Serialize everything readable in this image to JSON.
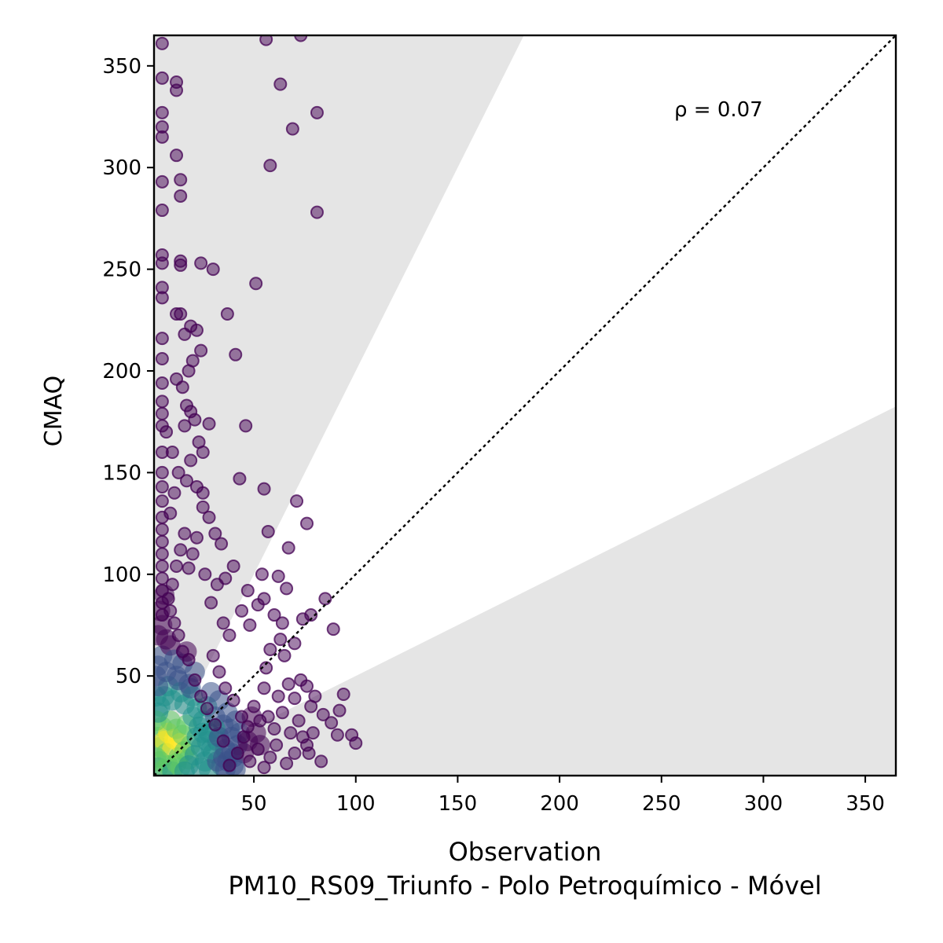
{
  "chart_data": {
    "type": "scatter",
    "title": "",
    "xlabel": "Observation",
    "ylabel": "CMAQ",
    "subtitle": "PM10_RS09_Triunfo - Polo Petroquímico - Móvel",
    "annotation": "ρ = 0.07",
    "xlim": [
      1,
      365
    ],
    "ylim": [
      1,
      365
    ],
    "xticks": [
      50,
      100,
      150,
      200,
      250,
      300,
      350
    ],
    "yticks": [
      50,
      100,
      150,
      200,
      250,
      300,
      350
    ],
    "grid": false,
    "reference_line": {
      "style": "dotted",
      "slope": 1,
      "color": "#000000"
    },
    "shaded_regions": [
      {
        "description": "model > 2x observation",
        "slope_lower": 2,
        "color": "#e5e5e5"
      },
      {
        "description": "model < 0.5x observation",
        "slope_upper": 0.5,
        "color": "#e5e5e5"
      }
    ],
    "colormap": [
      "#440154",
      "#3b528b",
      "#21918c",
      "#5ec962",
      "#fde725"
    ],
    "outlier_points": [
      [
        5,
        361
      ],
      [
        5,
        344
      ],
      [
        5,
        327
      ],
      [
        5,
        320
      ],
      [
        5,
        315
      ],
      [
        5,
        293
      ],
      [
        5,
        279
      ],
      [
        5,
        257
      ],
      [
        5,
        253
      ],
      [
        5,
        241
      ],
      [
        5,
        236
      ],
      [
        5,
        216
      ],
      [
        5,
        206
      ],
      [
        5,
        194
      ],
      [
        5,
        185
      ],
      [
        5,
        179
      ],
      [
        5,
        173
      ],
      [
        5,
        160
      ],
      [
        5,
        150
      ],
      [
        5,
        143
      ],
      [
        5,
        136
      ],
      [
        5,
        128
      ],
      [
        5,
        122
      ],
      [
        5,
        116
      ],
      [
        5,
        110
      ],
      [
        5,
        104
      ],
      [
        5,
        98
      ],
      [
        5,
        92
      ],
      [
        5,
        86
      ],
      [
        5,
        80
      ],
      [
        12,
        342
      ],
      [
        12,
        338
      ],
      [
        12,
        306
      ],
      [
        14,
        294
      ],
      [
        14,
        286
      ],
      [
        14,
        254
      ],
      [
        14,
        252
      ],
      [
        12,
        228
      ],
      [
        14,
        228
      ],
      [
        16,
        218
      ],
      [
        19,
        222
      ],
      [
        22,
        220
      ],
      [
        24,
        210
      ],
      [
        20,
        205
      ],
      [
        18,
        200
      ],
      [
        12,
        196
      ],
      [
        15,
        192
      ],
      [
        17,
        183
      ],
      [
        19,
        180
      ],
      [
        21,
        176
      ],
      [
        16,
        173
      ],
      [
        23,
        165
      ],
      [
        25,
        160
      ],
      [
        19,
        156
      ],
      [
        17,
        146
      ],
      [
        22,
        143
      ],
      [
        25,
        140
      ],
      [
        28,
        174
      ],
      [
        30,
        250
      ],
      [
        24,
        253
      ],
      [
        37,
        228
      ],
      [
        41,
        208
      ],
      [
        46,
        173
      ],
      [
        43,
        147
      ],
      [
        51,
        243
      ],
      [
        58,
        301
      ],
      [
        63,
        341
      ],
      [
        56,
        363
      ],
      [
        73,
        365
      ],
      [
        69,
        319
      ],
      [
        81,
        327
      ],
      [
        81,
        278
      ],
      [
        55,
        142
      ],
      [
        57,
        121
      ],
      [
        71,
        136
      ],
      [
        76,
        125
      ],
      [
        67,
        113
      ],
      [
        62,
        99
      ],
      [
        66,
        93
      ],
      [
        54,
        100
      ],
      [
        47,
        92
      ],
      [
        40,
        104
      ],
      [
        36,
        98
      ],
      [
        32,
        95
      ],
      [
        34,
        115
      ],
      [
        31,
        120
      ],
      [
        28,
        128
      ],
      [
        25,
        133
      ],
      [
        22,
        118
      ],
      [
        20,
        110
      ],
      [
        18,
        103
      ],
      [
        26,
        100
      ],
      [
        29,
        86
      ],
      [
        35,
        76
      ],
      [
        38,
        70
      ],
      [
        44,
        82
      ],
      [
        48,
        75
      ],
      [
        52,
        85
      ],
      [
        55,
        88
      ],
      [
        60,
        80
      ],
      [
        64,
        76
      ],
      [
        70,
        66
      ],
      [
        74,
        78
      ],
      [
        78,
        80
      ],
      [
        85,
        88
      ],
      [
        89,
        73
      ],
      [
        63,
        68
      ],
      [
        65,
        60
      ],
      [
        58,
        63
      ],
      [
        56,
        54
      ],
      [
        55,
        44
      ],
      [
        62,
        40
      ],
      [
        67,
        46
      ],
      [
        70,
        39
      ],
      [
        73,
        48
      ],
      [
        76,
        45
      ],
      [
        78,
        35
      ],
      [
        80,
        40
      ],
      [
        84,
        31
      ],
      [
        88,
        27
      ],
      [
        92,
        33
      ],
      [
        94,
        41
      ],
      [
        91,
        21
      ],
      [
        98,
        21
      ],
      [
        100,
        17
      ],
      [
        83,
        8
      ],
      [
        79,
        22
      ],
      [
        76,
        16
      ],
      [
        70,
        12
      ],
      [
        68,
        22
      ],
      [
        66,
        7
      ],
      [
        61,
        16
      ],
      [
        58,
        10
      ],
      [
        55,
        5
      ],
      [
        52,
        14
      ],
      [
        48,
        8
      ],
      [
        45,
        20
      ],
      [
        42,
        12
      ],
      [
        38,
        6
      ],
      [
        35,
        18
      ],
      [
        31,
        26
      ],
      [
        27,
        34
      ],
      [
        24,
        40
      ],
      [
        21,
        48
      ],
      [
        18,
        58
      ],
      [
        15,
        62
      ],
      [
        13,
        70
      ],
      [
        11,
        76
      ],
      [
        9,
        82
      ],
      [
        30,
        60
      ],
      [
        33,
        52
      ],
      [
        36,
        44
      ],
      [
        40,
        38
      ],
      [
        44,
        30
      ],
      [
        47,
        25
      ],
      [
        50,
        35
      ],
      [
        53,
        28
      ],
      [
        57,
        30
      ],
      [
        60,
        24
      ],
      [
        64,
        32
      ],
      [
        72,
        28
      ],
      [
        74,
        20
      ],
      [
        77,
        12
      ],
      [
        8,
        88
      ],
      [
        10,
        95
      ],
      [
        12,
        104
      ],
      [
        14,
        112
      ],
      [
        16,
        120
      ],
      [
        9,
        130
      ],
      [
        11,
        140
      ],
      [
        13,
        150
      ],
      [
        10,
        160
      ],
      [
        7,
        170
      ]
    ],
    "density_points": [
      [
        3,
        20
      ],
      [
        4,
        15
      ],
      [
        5,
        25
      ],
      [
        6,
        18
      ],
      [
        7,
        12
      ],
      [
        8,
        22
      ],
      [
        9,
        28
      ],
      [
        10,
        14
      ],
      [
        11,
        19
      ],
      [
        12,
        24
      ],
      [
        13,
        10
      ],
      [
        14,
        17
      ],
      [
        15,
        21
      ],
      [
        16,
        13
      ],
      [
        17,
        26
      ],
      [
        18,
        9
      ],
      [
        19,
        16
      ],
      [
        20,
        30
      ],
      [
        21,
        11
      ],
      [
        22,
        20
      ],
      [
        24,
        15
      ],
      [
        26,
        8
      ],
      [
        28,
        22
      ],
      [
        30,
        12
      ],
      [
        32,
        18
      ],
      [
        34,
        6
      ],
      [
        36,
        14
      ],
      [
        38,
        24
      ],
      [
        40,
        10
      ],
      [
        42,
        16
      ],
      [
        4,
        35
      ],
      [
        6,
        40
      ],
      [
        8,
        45
      ],
      [
        10,
        38
      ],
      [
        12,
        50
      ],
      [
        14,
        42
      ],
      [
        16,
        36
      ],
      [
        18,
        46
      ],
      [
        20,
        40
      ],
      [
        22,
        34
      ],
      [
        3,
        55
      ],
      [
        5,
        60
      ],
      [
        7,
        52
      ],
      [
        9,
        65
      ],
      [
        11,
        58
      ],
      [
        13,
        48
      ],
      [
        15,
        56
      ],
      [
        17,
        62
      ],
      [
        19,
        44
      ],
      [
        21,
        52
      ],
      [
        3,
        70
      ],
      [
        5,
        75
      ],
      [
        7,
        68
      ],
      [
        4,
        82
      ],
      [
        6,
        90
      ],
      [
        25,
        28
      ],
      [
        27,
        35
      ],
      [
        29,
        42
      ],
      [
        31,
        30
      ],
      [
        33,
        38
      ],
      [
        35,
        26
      ],
      [
        37,
        32
      ],
      [
        39,
        20
      ],
      [
        41,
        28
      ],
      [
        43,
        22
      ],
      [
        45,
        12
      ],
      [
        47,
        18
      ],
      [
        49,
        30
      ],
      [
        51,
        22
      ],
      [
        53,
        16
      ],
      [
        2,
        10
      ],
      [
        3,
        5
      ],
      [
        4,
        8
      ],
      [
        6,
        4
      ],
      [
        8,
        6
      ],
      [
        10,
        3
      ],
      [
        12,
        7
      ],
      [
        14,
        5
      ],
      [
        16,
        3
      ],
      [
        18,
        6
      ],
      [
        2,
        28
      ],
      [
        3,
        32
      ],
      [
        2,
        40
      ],
      [
        3,
        45
      ],
      [
        2,
        50
      ],
      [
        24,
        5
      ],
      [
        28,
        4
      ],
      [
        32,
        8
      ],
      [
        36,
        4
      ],
      [
        40,
        6
      ],
      [
        23,
        25
      ],
      [
        25,
        22
      ],
      [
        27,
        18
      ],
      [
        29,
        14
      ],
      [
        31,
        24
      ],
      [
        33,
        20
      ],
      [
        35,
        10
      ],
      [
        37,
        8
      ],
      [
        39,
        12
      ],
      [
        41,
        4
      ]
    ]
  }
}
